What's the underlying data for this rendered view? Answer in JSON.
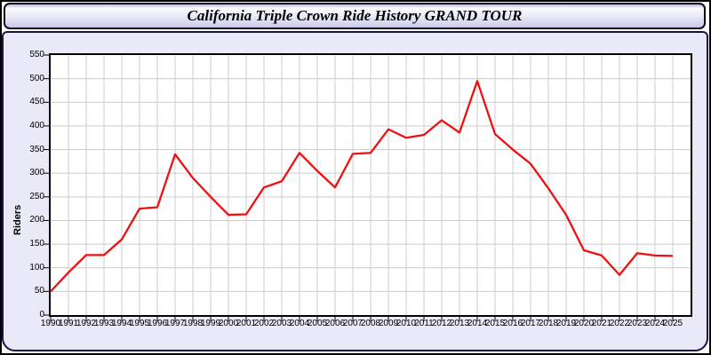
{
  "window": {
    "title": "California Triple Crown Ride History GRAND TOUR"
  },
  "chart_data": {
    "type": "line",
    "title": "California Triple Crown Ride History GRAND TOUR",
    "xlabel": "",
    "ylabel": "Riders",
    "x": [
      1990,
      1991,
      1992,
      1993,
      1994,
      1995,
      1996,
      1997,
      1998,
      1999,
      2000,
      2001,
      2002,
      2003,
      2004,
      2005,
      2006,
      2007,
      2008,
      2009,
      2010,
      2011,
      2012,
      2013,
      2014,
      2015,
      2016,
      2017,
      2018,
      2019,
      2020,
      2021,
      2022,
      2023,
      2024,
      2025
    ],
    "series": [
      {
        "name": "Riders",
        "color": "#ee1111",
        "values": [
          50,
          90,
          127,
          127,
          160,
          225,
          228,
          340,
          290,
          250,
          212,
          213,
          270,
          283,
          343,
          305,
          270,
          341,
          343,
          393,
          375,
          381,
          412,
          386,
          495,
          383,
          350,
          320,
          268,
          212,
          137,
          126,
          85,
          131,
          126,
          125
        ]
      }
    ],
    "ylim": [
      0,
      550
    ],
    "yticks": [
      0,
      50,
      100,
      150,
      200,
      250,
      300,
      350,
      400,
      450,
      500,
      550
    ],
    "grid": true,
    "legend": "none"
  },
  "colors": {
    "line": "#ee1111",
    "grid": "#cccccc",
    "plot_bg": "#ffffff",
    "plot_frame": "#000000",
    "panel_bg": "#e9e9f8",
    "panel_border": "#141445",
    "title_text": "#000000"
  }
}
